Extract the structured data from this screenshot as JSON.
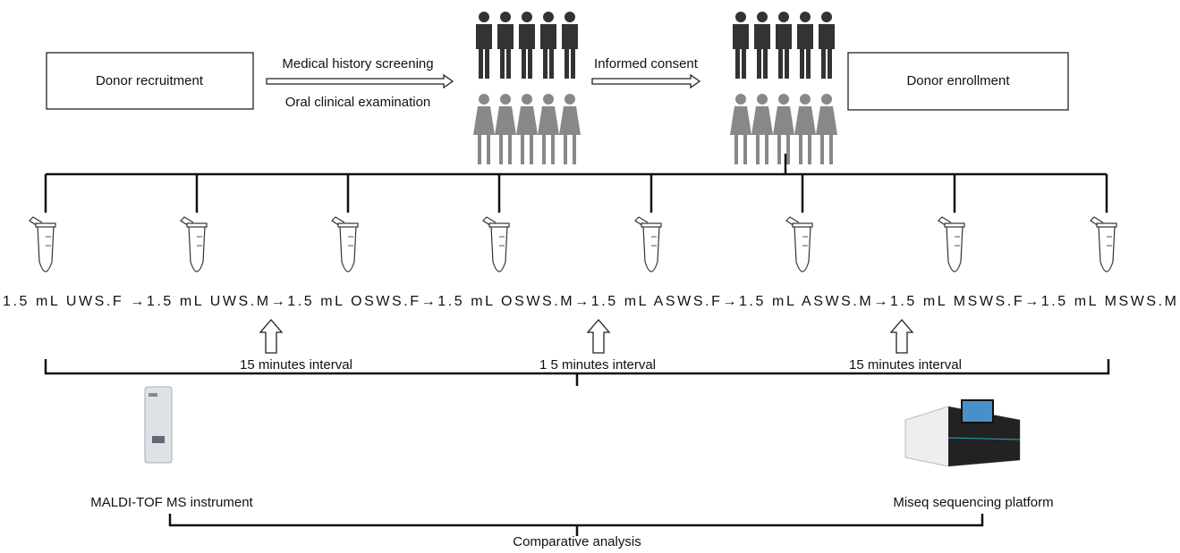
{
  "header": {
    "recruitment": "Donor recruitment",
    "enrollment": "Donor enrollment"
  },
  "screening": {
    "top": "Medical history screening",
    "bottom": "Oral clinical examination"
  },
  "consent": "Informed consent",
  "samples_line": "1.5 mL UWS.F →1.5 mL UWS.M→1.5 mL OSWS.F→1.5 mL OSWS.M→1.5 mL ASWS.F→1.5 mL ASWS.M→1.5 mL MSWS.F→1.5 mL MSWS.M",
  "intervals": [
    "15 minutes interval",
    "1 5 minutes interval",
    "15 minutes interval"
  ],
  "instruments": {
    "maldi": "MALDI-TOF MS instrument",
    "miseq": "Miseq sequencing platform"
  },
  "analysis": "Comparative analysis"
}
